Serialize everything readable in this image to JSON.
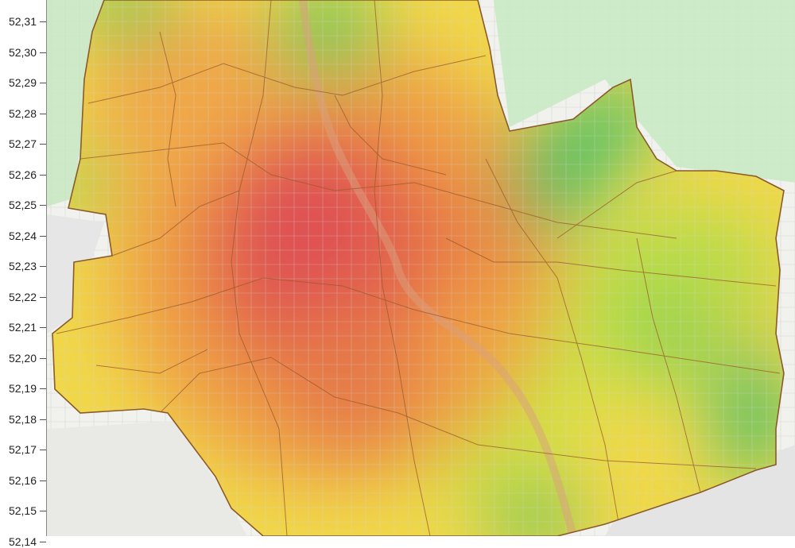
{
  "axis": {
    "ticks": [
      "52,31",
      "52,30",
      "52,29",
      "52,28",
      "52,27",
      "52,26",
      "52,25",
      "52,24",
      "52,23",
      "52,22",
      "52,21",
      "52,20",
      "52,19",
      "52,18",
      "52,17",
      "52,16",
      "52,15",
      "52,14"
    ]
  },
  "map": {
    "colors": {
      "high": "#e0464f",
      "mid": "#f0a040",
      "low_mid": "#f2e24a",
      "low": "#3fbf6a",
      "basemap": "#eef3ea",
      "forest": "#bfe6b5",
      "boundary": "#9a5a2a"
    }
  }
}
